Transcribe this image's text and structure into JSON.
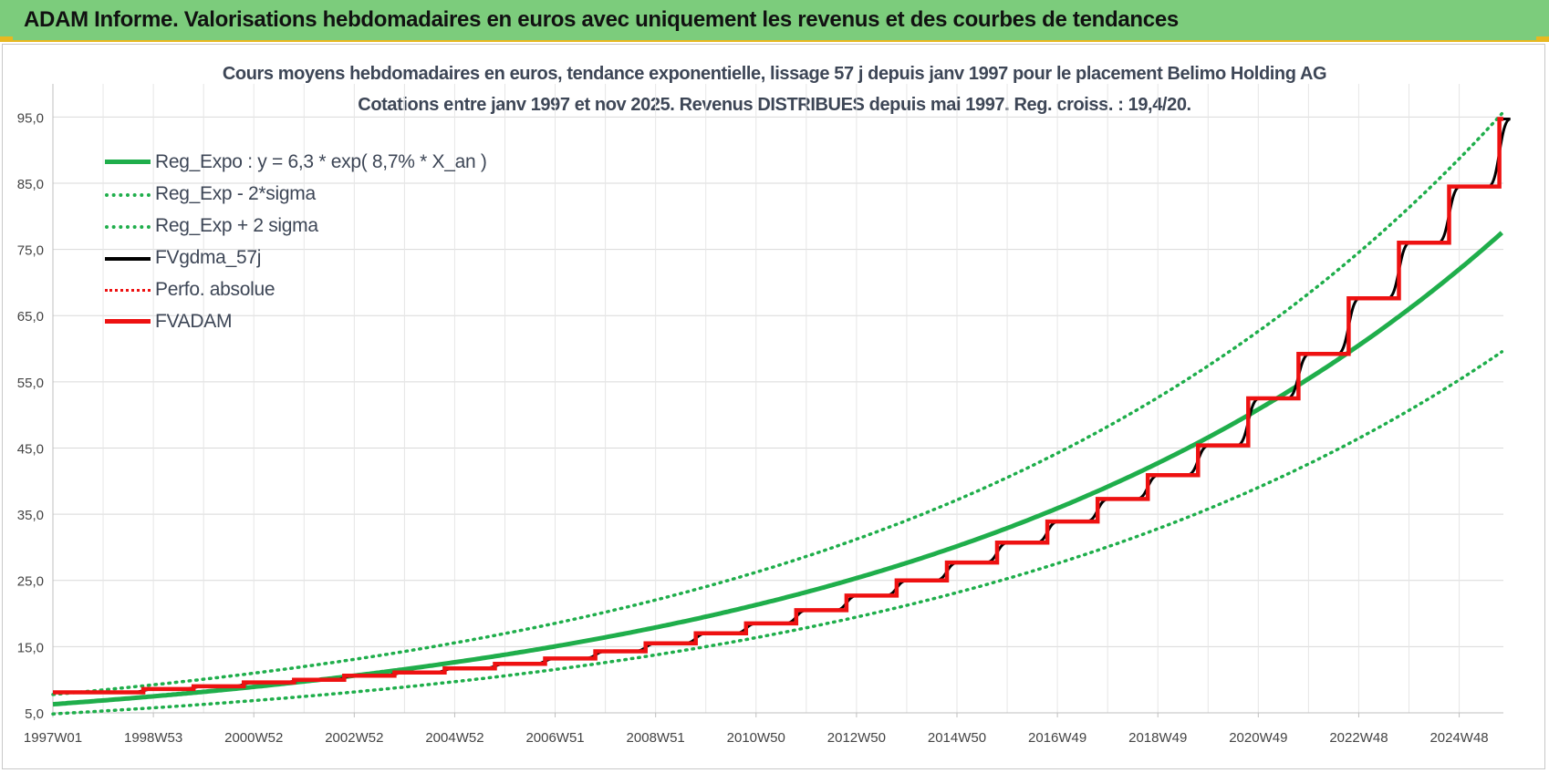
{
  "header": {
    "title": "ADAM Informe. Valorisations hebdomadaires en euros avec uniquement les revenus et des courbes de tendances"
  },
  "colors": {
    "header_bg": "#7ccc7c",
    "accent": "#e8b820",
    "reg": "#1fae4b",
    "fvgdma": "#000000",
    "fvadam": "#ee1111"
  },
  "chart_data": {
    "type": "line",
    "title": "Cours moyens hebdomadaires en euros, tendance exponentielle, lissage 57 j depuis janv 1997 pour le placement Belimo Holding AG",
    "subtitle": "Cotations entre janv 1997 et nov 2025. Revenus DISTRIBUES depuis mai 1997. Reg. croiss. : 19,4/20.",
    "x_tick_labels": [
      "1997W01",
      "1998W53",
      "2000W52",
      "2002W52",
      "2004W52",
      "2006W51",
      "2008W51",
      "2010W50",
      "2012W50",
      "2014W50",
      "2016W49",
      "2018W49",
      "2020W49",
      "2022W48",
      "2024W48"
    ],
    "x_range": [
      1997.0,
      2025.88
    ],
    "y_ticks": [
      "5,0",
      "15,0",
      "25,0",
      "35,0",
      "45,0",
      "55,0",
      "65,0",
      "75,0",
      "85,0",
      "95,0"
    ],
    "ylim": [
      5,
      100
    ],
    "grid": true,
    "legend_position": "top-left",
    "regression": {
      "formula": "y = 6,3 * exp( 8,7% * X_an )",
      "a": 6.3,
      "rate": 0.087,
      "sigma_band": 0.232
    },
    "series": [
      {
        "name": "Reg_Expo : y = 6,3 * exp( 8,7% *  X_an )",
        "style": "solid",
        "color": "#1fae4b"
      },
      {
        "name": "Reg_Exp - 2*sigma",
        "style": "dotted",
        "color": "#1fae4b"
      },
      {
        "name": "Reg_Exp + 2 sigma",
        "style": "dotted",
        "color": "#1fae4b"
      },
      {
        "name": "FVgdma_57j",
        "style": "solid",
        "color": "#000000"
      },
      {
        "name": "Perfo. absolue",
        "style": "dotted",
        "color": "#ee1111"
      },
      {
        "name": "FVADAM",
        "style": "solid",
        "color": "#ee1111",
        "steps": [
          {
            "x": 1997.0,
            "y": 8.1
          },
          {
            "x": 1998.8,
            "y": 8.6
          },
          {
            "x": 1999.8,
            "y": 9.0
          },
          {
            "x": 2000.8,
            "y": 9.6
          },
          {
            "x": 2001.8,
            "y": 10.0
          },
          {
            "x": 2002.8,
            "y": 10.6
          },
          {
            "x": 2003.8,
            "y": 11.1
          },
          {
            "x": 2004.8,
            "y": 11.7
          },
          {
            "x": 2005.8,
            "y": 12.4
          },
          {
            "x": 2006.8,
            "y": 13.2
          },
          {
            "x": 2007.8,
            "y": 14.3
          },
          {
            "x": 2008.8,
            "y": 15.5
          },
          {
            "x": 2009.8,
            "y": 17.0
          },
          {
            "x": 2010.8,
            "y": 18.5
          },
          {
            "x": 2011.8,
            "y": 20.5
          },
          {
            "x": 2012.8,
            "y": 22.7
          },
          {
            "x": 2013.8,
            "y": 25.0
          },
          {
            "x": 2014.8,
            "y": 27.7
          },
          {
            "x": 2015.8,
            "y": 30.7
          },
          {
            "x": 2016.8,
            "y": 33.9
          },
          {
            "x": 2017.8,
            "y": 37.3
          },
          {
            "x": 2018.8,
            "y": 40.9
          },
          {
            "x": 2019.8,
            "y": 45.4
          },
          {
            "x": 2020.8,
            "y": 52.5
          },
          {
            "x": 2021.8,
            "y": 59.2
          },
          {
            "x": 2022.8,
            "y": 67.6
          },
          {
            "x": 2023.8,
            "y": 76.0
          },
          {
            "x": 2024.8,
            "y": 84.5
          },
          {
            "x": 2025.8,
            "y": 94.7
          }
        ]
      }
    ]
  }
}
